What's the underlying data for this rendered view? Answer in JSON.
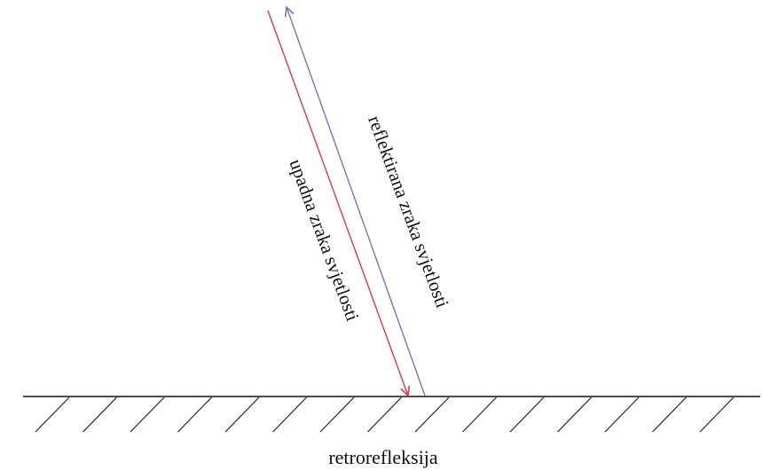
{
  "labels": {
    "incident_ray": "upadna zraka svjetlosti",
    "reflected_ray": "reflektirana zraka svjetlosti",
    "caption": "retrorefleksija"
  },
  "colors": {
    "incident_ray": "#e8343f",
    "reflected_ray": "#6f74c6",
    "surface": "#111111",
    "hatch": "#222222",
    "text": "#111111"
  }
}
